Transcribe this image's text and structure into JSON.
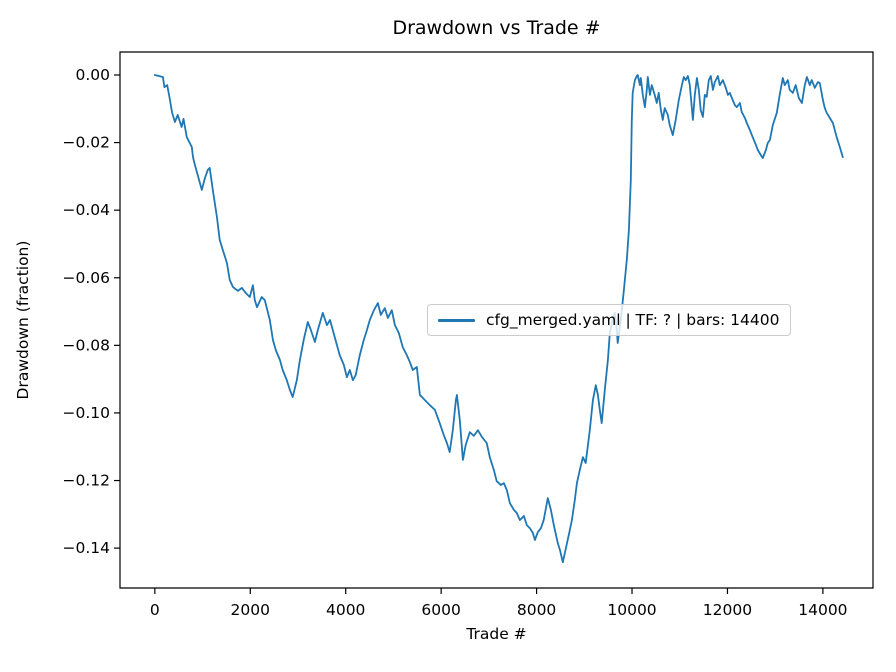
{
  "figure": {
    "title": "Drawdown vs Trade #",
    "xlabel": "Trade #",
    "ylabel": "Drawdown (fraction)",
    "background_color": "#ffffff",
    "spine_color": "#000000",
    "text_color": "#000000",
    "tick_color": "#000000"
  },
  "legend": {
    "label": "cfg_merged.yaml | TF: ? | bars: 14400",
    "line_color": "#1f77b4"
  },
  "chart_data": {
    "type": "line",
    "title": "Drawdown vs Trade #",
    "xlabel": "Trade #",
    "ylabel": "Drawdown (fraction)",
    "grid": false,
    "legend_position": "center right",
    "xlim": [
      -730,
      15050
    ],
    "ylim": [
      -0.1518,
      0.0068
    ],
    "x_ticks": [
      {
        "v": 0,
        "label": "0"
      },
      {
        "v": 2000,
        "label": "2000"
      },
      {
        "v": 4000,
        "label": "4000"
      },
      {
        "v": 6000,
        "label": "6000"
      },
      {
        "v": 8000,
        "label": "8000"
      },
      {
        "v": 10000,
        "label": "10000"
      },
      {
        "v": 12000,
        "label": "12000"
      },
      {
        "v": 14000,
        "label": "14000"
      }
    ],
    "y_ticks": [
      {
        "v": 0.0,
        "label": "0.00"
      },
      {
        "v": -0.02,
        "label": "−0.02"
      },
      {
        "v": -0.04,
        "label": "−0.04"
      },
      {
        "v": -0.06,
        "label": "−0.06"
      },
      {
        "v": -0.08,
        "label": "−0.08"
      },
      {
        "v": -0.1,
        "label": "−0.10"
      },
      {
        "v": -0.12,
        "label": "−0.12"
      },
      {
        "v": -0.14,
        "label": "−0.14"
      }
    ],
    "series": [
      {
        "name": "cfg_merged.yaml | TF: ? | bars: 14400",
        "color": "#1f77b4",
        "line_width": 1.8,
        "points": [
          [
            0,
            0.0
          ],
          [
            170,
            -0.0006
          ],
          [
            200,
            -0.0036
          ],
          [
            260,
            -0.003
          ],
          [
            310,
            -0.0068
          ],
          [
            360,
            -0.011
          ],
          [
            420,
            -0.0139
          ],
          [
            480,
            -0.0118
          ],
          [
            560,
            -0.0154
          ],
          [
            600,
            -0.013
          ],
          [
            670,
            -0.0184
          ],
          [
            775,
            -0.0213
          ],
          [
            800,
            -0.0243
          ],
          [
            840,
            -0.0266
          ],
          [
            985,
            -0.034
          ],
          [
            1050,
            -0.0305
          ],
          [
            1110,
            -0.0281
          ],
          [
            1150,
            -0.0275
          ],
          [
            1215,
            -0.034
          ],
          [
            1300,
            -0.042
          ],
          [
            1360,
            -0.0488
          ],
          [
            1425,
            -0.0518
          ],
          [
            1510,
            -0.0556
          ],
          [
            1570,
            -0.0607
          ],
          [
            1635,
            -0.0627
          ],
          [
            1740,
            -0.0639
          ],
          [
            1825,
            -0.063
          ],
          [
            1905,
            -0.0645
          ],
          [
            1990,
            -0.0657
          ],
          [
            2055,
            -0.0622
          ],
          [
            2095,
            -0.0666
          ],
          [
            2140,
            -0.0687
          ],
          [
            2240,
            -0.0657
          ],
          [
            2305,
            -0.0666
          ],
          [
            2410,
            -0.0725
          ],
          [
            2475,
            -0.0784
          ],
          [
            2535,
            -0.0814
          ],
          [
            2620,
            -0.0843
          ],
          [
            2680,
            -0.0873
          ],
          [
            2765,
            -0.0903
          ],
          [
            2830,
            -0.0932
          ],
          [
            2890,
            -0.0953
          ],
          [
            2975,
            -0.0903
          ],
          [
            3040,
            -0.0843
          ],
          [
            3120,
            -0.0784
          ],
          [
            3205,
            -0.0731
          ],
          [
            3270,
            -0.0755
          ],
          [
            3355,
            -0.079
          ],
          [
            3415,
            -0.0755
          ],
          [
            3520,
            -0.0704
          ],
          [
            3605,
            -0.074
          ],
          [
            3670,
            -0.0725
          ],
          [
            3730,
            -0.0755
          ],
          [
            3815,
            -0.0799
          ],
          [
            3875,
            -0.0829
          ],
          [
            3960,
            -0.0858
          ],
          [
            4025,
            -0.0894
          ],
          [
            4085,
            -0.0873
          ],
          [
            4150,
            -0.0903
          ],
          [
            4210,
            -0.0888
          ],
          [
            4295,
            -0.0829
          ],
          [
            4380,
            -0.0784
          ],
          [
            4445,
            -0.0755
          ],
          [
            4505,
            -0.0725
          ],
          [
            4590,
            -0.0696
          ],
          [
            4675,
            -0.0675
          ],
          [
            4735,
            -0.071
          ],
          [
            4820,
            -0.069
          ],
          [
            4885,
            -0.0719
          ],
          [
            4965,
            -0.0696
          ],
          [
            5030,
            -0.074
          ],
          [
            5115,
            -0.0764
          ],
          [
            5195,
            -0.0805
          ],
          [
            5280,
            -0.0829
          ],
          [
            5345,
            -0.085
          ],
          [
            5405,
            -0.0873
          ],
          [
            5490,
            -0.0864
          ],
          [
            5555,
            -0.0947
          ],
          [
            5660,
            -0.0962
          ],
          [
            5765,
            -0.0977
          ],
          [
            5870,
            -0.0991
          ],
          [
            5970,
            -0.103
          ],
          [
            6055,
            -0.1066
          ],
          [
            6120,
            -0.1089
          ],
          [
            6180,
            -0.1116
          ],
          [
            6245,
            -0.1051
          ],
          [
            6310,
            -0.0962
          ],
          [
            6330,
            -0.0947
          ],
          [
            6390,
            -0.1021
          ],
          [
            6455,
            -0.1139
          ],
          [
            6515,
            -0.1095
          ],
          [
            6600,
            -0.1057
          ],
          [
            6685,
            -0.1068
          ],
          [
            6770,
            -0.1051
          ],
          [
            6855,
            -0.1071
          ],
          [
            6955,
            -0.1089
          ],
          [
            7020,
            -0.1131
          ],
          [
            7105,
            -0.1169
          ],
          [
            7165,
            -0.1202
          ],
          [
            7250,
            -0.1213
          ],
          [
            7315,
            -0.1208
          ],
          [
            7375,
            -0.1228
          ],
          [
            7440,
            -0.1267
          ],
          [
            7525,
            -0.1287
          ],
          [
            7585,
            -0.1296
          ],
          [
            7650,
            -0.1317
          ],
          [
            7735,
            -0.1305
          ],
          [
            7795,
            -0.1332
          ],
          [
            7860,
            -0.1341
          ],
          [
            7920,
            -0.1355
          ],
          [
            7965,
            -0.1376
          ],
          [
            8025,
            -0.1353
          ],
          [
            8090,
            -0.1341
          ],
          [
            8150,
            -0.1317
          ],
          [
            8235,
            -0.1252
          ],
          [
            8300,
            -0.1287
          ],
          [
            8360,
            -0.1332
          ],
          [
            8445,
            -0.1385
          ],
          [
            8490,
            -0.1406
          ],
          [
            8550,
            -0.1442
          ],
          [
            8615,
            -0.14
          ],
          [
            8675,
            -0.1361
          ],
          [
            8740,
            -0.1317
          ],
          [
            8800,
            -0.1258
          ],
          [
            8845,
            -0.1208
          ],
          [
            8905,
            -0.1169
          ],
          [
            8970,
            -0.1131
          ],
          [
            9030,
            -0.1148
          ],
          [
            9115,
            -0.1051
          ],
          [
            9180,
            -0.0962
          ],
          [
            9240,
            -0.0918
          ],
          [
            9285,
            -0.0947
          ],
          [
            9325,
            -0.0991
          ],
          [
            9365,
            -0.103
          ],
          [
            9430,
            -0.0932
          ],
          [
            9495,
            -0.0843
          ],
          [
            9535,
            -0.0764
          ],
          [
            9600,
            -0.0719
          ],
          [
            9640,
            -0.0704
          ],
          [
            9680,
            -0.0755
          ],
          [
            9700,
            -0.0793
          ],
          [
            9765,
            -0.0725
          ],
          [
            9830,
            -0.0636
          ],
          [
            9890,
            -0.0547
          ],
          [
            9935,
            -0.0459
          ],
          [
            9975,
            -0.0311
          ],
          [
            9995,
            -0.0133
          ],
          [
            10015,
            -0.0053
          ],
          [
            10060,
            -0.0015
          ],
          [
            10100,
            -0.0003
          ],
          [
            10120,
            0.0
          ],
          [
            10165,
            -0.003
          ],
          [
            10185,
            -0.0009
          ],
          [
            10225,
            -0.0059
          ],
          [
            10270,
            -0.0095
          ],
          [
            10310,
            -0.0044
          ],
          [
            10330,
            -0.0006
          ],
          [
            10375,
            -0.0059
          ],
          [
            10415,
            -0.003
          ],
          [
            10475,
            -0.0059
          ],
          [
            10520,
            -0.0083
          ],
          [
            10560,
            -0.0053
          ],
          [
            10605,
            -0.0104
          ],
          [
            10645,
            -0.0133
          ],
          [
            10685,
            -0.0098
          ],
          [
            10750,
            -0.0118
          ],
          [
            10790,
            -0.0148
          ],
          [
            10855,
            -0.0178
          ],
          [
            10915,
            -0.0133
          ],
          [
            10980,
            -0.0074
          ],
          [
            11045,
            -0.003
          ],
          [
            11085,
            -0.0006
          ],
          [
            11125,
            -0.0015
          ],
          [
            11170,
            -0.0003
          ],
          [
            11210,
            -0.003
          ],
          [
            11275,
            -0.0133
          ],
          [
            11315,
            -0.0059
          ],
          [
            11360,
            -0.0009
          ],
          [
            11400,
            -0.0044
          ],
          [
            11440,
            -0.0104
          ],
          [
            11485,
            -0.0124
          ],
          [
            11525,
            -0.0059
          ],
          [
            11565,
            -0.0065
          ],
          [
            11610,
            -0.0015
          ],
          [
            11650,
            -0.0003
          ],
          [
            11695,
            -0.0044
          ],
          [
            11735,
            -0.0021
          ],
          [
            11800,
            -0.0003
          ],
          [
            11840,
            -0.003
          ],
          [
            11905,
            -0.0015
          ],
          [
            11965,
            -0.0038
          ],
          [
            12010,
            -0.0059
          ],
          [
            12050,
            -0.0053
          ],
          [
            12110,
            -0.0074
          ],
          [
            12155,
            -0.0089
          ],
          [
            12195,
            -0.0095
          ],
          [
            12260,
            -0.0083
          ],
          [
            12300,
            -0.011
          ],
          [
            12365,
            -0.0127
          ],
          [
            12405,
            -0.0142
          ],
          [
            12470,
            -0.0163
          ],
          [
            12530,
            -0.0184
          ],
          [
            12595,
            -0.0207
          ],
          [
            12635,
            -0.0222
          ],
          [
            12700,
            -0.0237
          ],
          [
            12740,
            -0.0246
          ],
          [
            12805,
            -0.0222
          ],
          [
            12845,
            -0.0201
          ],
          [
            12890,
            -0.0192
          ],
          [
            12950,
            -0.0148
          ],
          [
            13035,
            -0.0112
          ],
          [
            13095,
            -0.0059
          ],
          [
            13160,
            -0.0009
          ],
          [
            13200,
            -0.003
          ],
          [
            13265,
            -0.0015
          ],
          [
            13305,
            -0.0044
          ],
          [
            13370,
            -0.0053
          ],
          [
            13430,
            -0.003
          ],
          [
            13495,
            -0.0068
          ],
          [
            13560,
            -0.0083
          ],
          [
            13620,
            -0.003
          ],
          [
            13665,
            -0.0006
          ],
          [
            13725,
            -0.003
          ],
          [
            13765,
            -0.0015
          ],
          [
            13830,
            -0.0038
          ],
          [
            13895,
            -0.0021
          ],
          [
            13935,
            -0.0024
          ],
          [
            14000,
            -0.0074
          ],
          [
            14040,
            -0.0098
          ],
          [
            14080,
            -0.0112
          ],
          [
            14145,
            -0.0127
          ],
          [
            14210,
            -0.0142
          ],
          [
            14250,
            -0.0163
          ],
          [
            14290,
            -0.0184
          ],
          [
            14355,
            -0.0213
          ],
          [
            14417,
            -0.0243
          ]
        ]
      }
    ]
  }
}
